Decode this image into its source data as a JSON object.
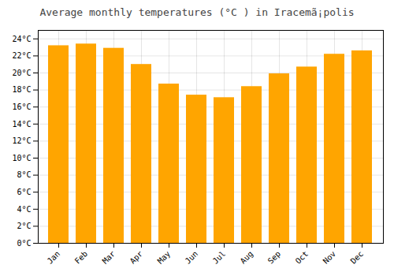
{
  "chart_data": {
    "type": "bar",
    "title": "Average monthly temperatures (°C ) in Iracemã¡polis",
    "categories": [
      "Jan",
      "Feb",
      "Mar",
      "Apr",
      "May",
      "Jun",
      "Jul",
      "Aug",
      "Sep",
      "Oct",
      "Nov",
      "Dec"
    ],
    "values": [
      23.2,
      23.4,
      22.9,
      21.0,
      18.7,
      17.4,
      17.1,
      18.4,
      19.9,
      20.7,
      22.2,
      22.6
    ],
    "color": "#FFA500",
    "ylim": [
      0,
      25
    ],
    "yticks": [
      {
        "value": 0,
        "label": "0°C"
      },
      {
        "value": 2,
        "label": "2°C"
      },
      {
        "value": 4,
        "label": "4°C"
      },
      {
        "value": 6,
        "label": "6°C"
      },
      {
        "value": 8,
        "label": "8°C"
      },
      {
        "value": 10,
        "label": "10°C"
      },
      {
        "value": 12,
        "label": "12°C"
      },
      {
        "value": 14,
        "label": "14°C"
      },
      {
        "value": 16,
        "label": "16°C"
      },
      {
        "value": 18,
        "label": "18°C"
      },
      {
        "value": 20,
        "label": "20°C"
      },
      {
        "value": 22,
        "label": "22°C"
      },
      {
        "value": 24,
        "label": "24°C"
      }
    ],
    "grid": true
  }
}
